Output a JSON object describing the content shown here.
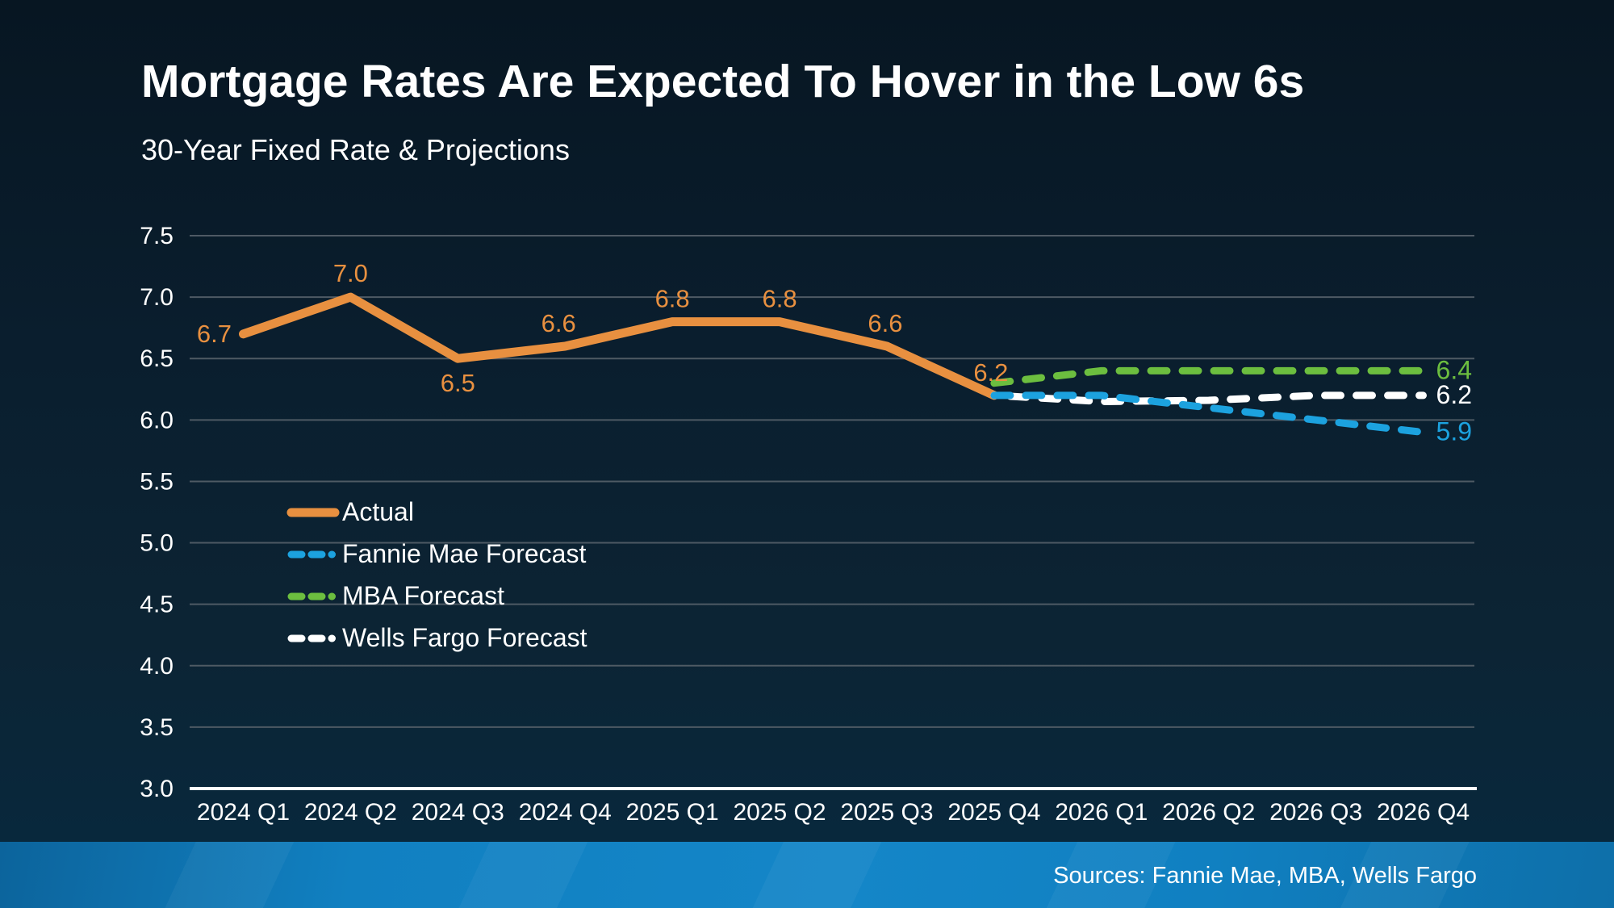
{
  "slide": {
    "title": "Mortgage Rates Are Expected To Hover in the Low 6s",
    "subtitle": "30-Year Fixed Rate & Projections",
    "source_note": "Sources: Fannie Mae, MBA, Wells Fargo"
  },
  "colors": {
    "background_top": "#071622",
    "background_bottom": "#07293F",
    "footer_bar": "#1486C8",
    "gridline": "#4E5A64",
    "axis_line": "#FFFFFF",
    "text": "#FFFFFF",
    "actual": "#E89040",
    "fannie_mae": "#1CA2DF",
    "mba": "#6CBE3F",
    "wells_fargo": "#FFFFFF"
  },
  "chart_data": {
    "type": "line",
    "title": "Mortgage Rates Are Expected To Hover in the Low 6s",
    "subtitle": "30-Year Fixed Rate & Projections",
    "xlabel": "",
    "ylabel": "",
    "ylim": [
      3.0,
      7.5
    ],
    "grid": true,
    "legend_position": "middle-left",
    "categories": [
      "2024 Q1",
      "2024 Q2",
      "2024 Q3",
      "2024 Q4",
      "2025 Q1",
      "2025 Q2",
      "2025 Q3",
      "2025 Q4",
      "2026 Q1",
      "2026 Q2",
      "2026 Q3",
      "2026 Q4"
    ],
    "y_axis": {
      "min": 3.0,
      "max": 7.5,
      "step": 0.5,
      "tick_labels": [
        "7.5",
        "7.0",
        "6.5",
        "6.0",
        "5.5",
        "5.0",
        "4.5",
        "4.0",
        "3.5",
        "3.0"
      ]
    },
    "series": [
      {
        "id": "actual",
        "name": "Actual",
        "style": "solid",
        "color_key": "actual",
        "start_index": 0,
        "values": [
          6.7,
          7.0,
          6.5,
          6.6,
          6.8,
          6.8,
          6.6,
          6.2
        ],
        "point_labels": [
          {
            "text": "6.7",
            "dx": -36,
            "dy": 0
          },
          {
            "text": "7.0",
            "dx": 0,
            "dy": -29
          },
          {
            "text": "6.5",
            "dx": 0,
            "dy": 31
          },
          {
            "text": "6.6",
            "dx": -8,
            "dy": -28
          },
          {
            "text": "6.8",
            "dx": 0,
            "dy": -28
          },
          {
            "text": "6.8",
            "dx": 0,
            "dy": -28
          },
          {
            "text": "6.6",
            "dx": -2,
            "dy": -28
          },
          {
            "text": "6.2",
            "dx": -4,
            "dy": -28
          }
        ]
      },
      {
        "id": "fannie",
        "name": "Fannie Mae Forecast",
        "style": "dashed",
        "color_key": "fannie_mae",
        "start_index": 7,
        "values": [
          6.2,
          6.2,
          6.1,
          6.0,
          5.9
        ],
        "end_label": "5.9"
      },
      {
        "id": "mba",
        "name": "MBA Forecast",
        "style": "dashed",
        "color_key": "mba",
        "start_index": 7,
        "values": [
          6.3,
          6.4,
          6.4,
          6.4,
          6.4
        ],
        "end_label": "6.4"
      },
      {
        "id": "wells",
        "name": "Wells Fargo Forecast",
        "style": "dashed",
        "color_key": "wells_fargo",
        "start_index": 7,
        "values": [
          6.2,
          6.15,
          6.16,
          6.2,
          6.2
        ],
        "end_label": "6.2"
      }
    ]
  }
}
